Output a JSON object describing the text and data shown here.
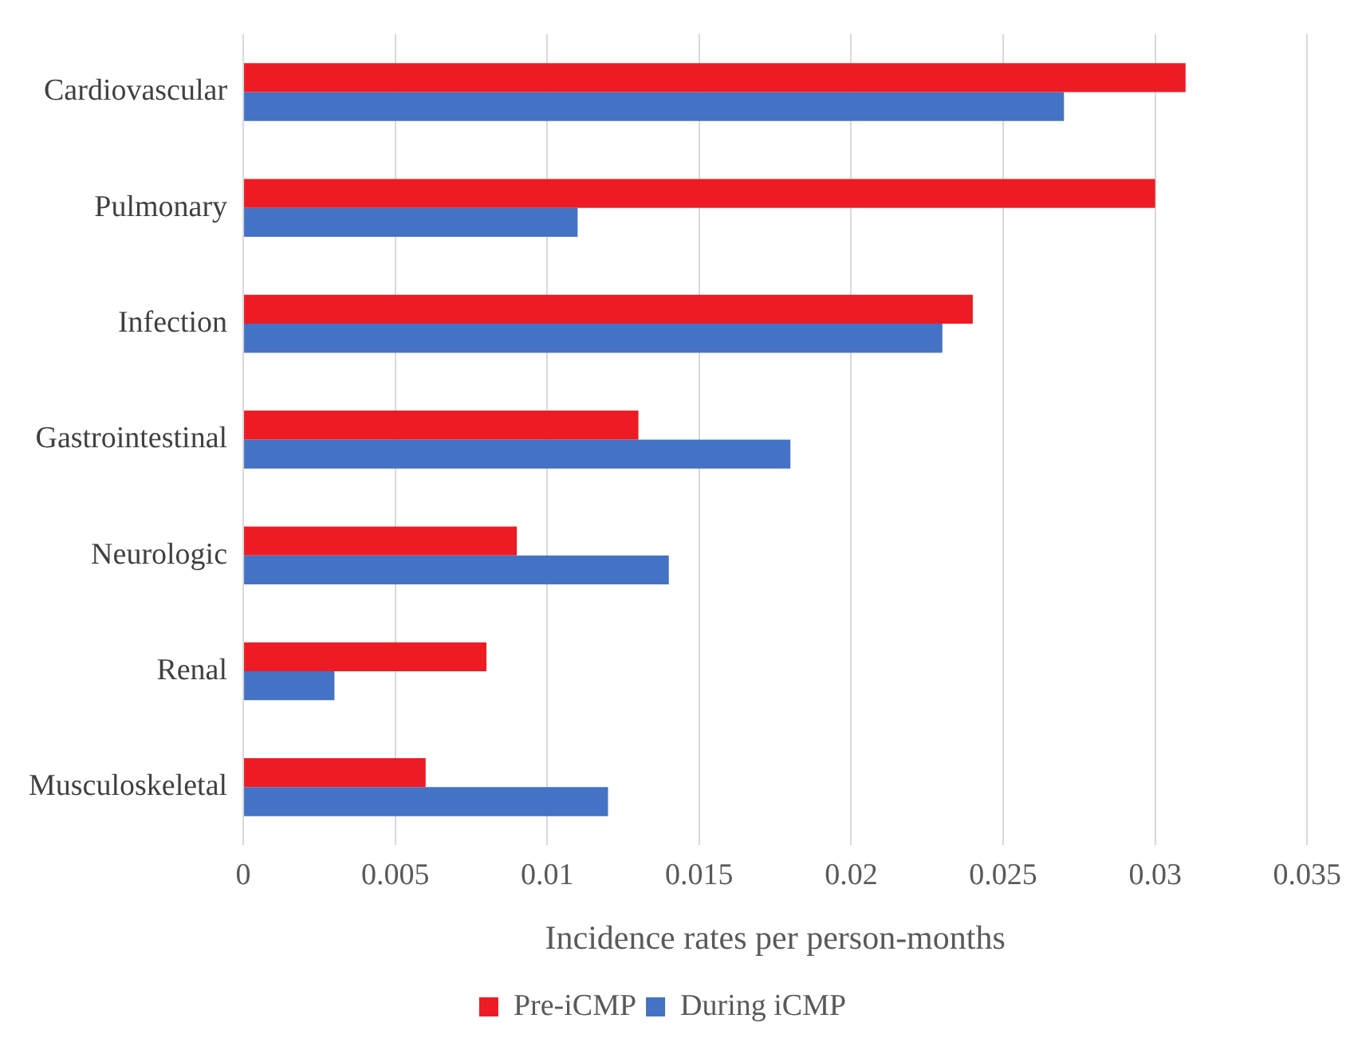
{
  "chart_data": {
    "type": "bar",
    "orientation": "horizontal",
    "xlabel": "Incidence rates per person-months",
    "categories": [
      "Cardiovascular",
      "Pulmonary",
      "Infection",
      "Gastrointestinal",
      "Neurologic",
      "Renal",
      "Musculoskeletal"
    ],
    "series": [
      {
        "name": "Pre-iCMP",
        "color": "#ed1c24",
        "values": [
          0.031,
          0.03,
          0.024,
          0.013,
          0.009,
          0.008,
          0.006
        ]
      },
      {
        "name": "During iCMP",
        "color": "#4472c4",
        "values": [
          0.027,
          0.011,
          0.023,
          0.018,
          0.014,
          0.003,
          0.012
        ]
      }
    ],
    "xlim": [
      0,
      0.035
    ],
    "xticks": [
      0,
      0.005,
      0.01,
      0.015,
      0.02,
      0.025,
      0.03,
      0.035
    ],
    "grid": "x",
    "legend": "bottom"
  }
}
